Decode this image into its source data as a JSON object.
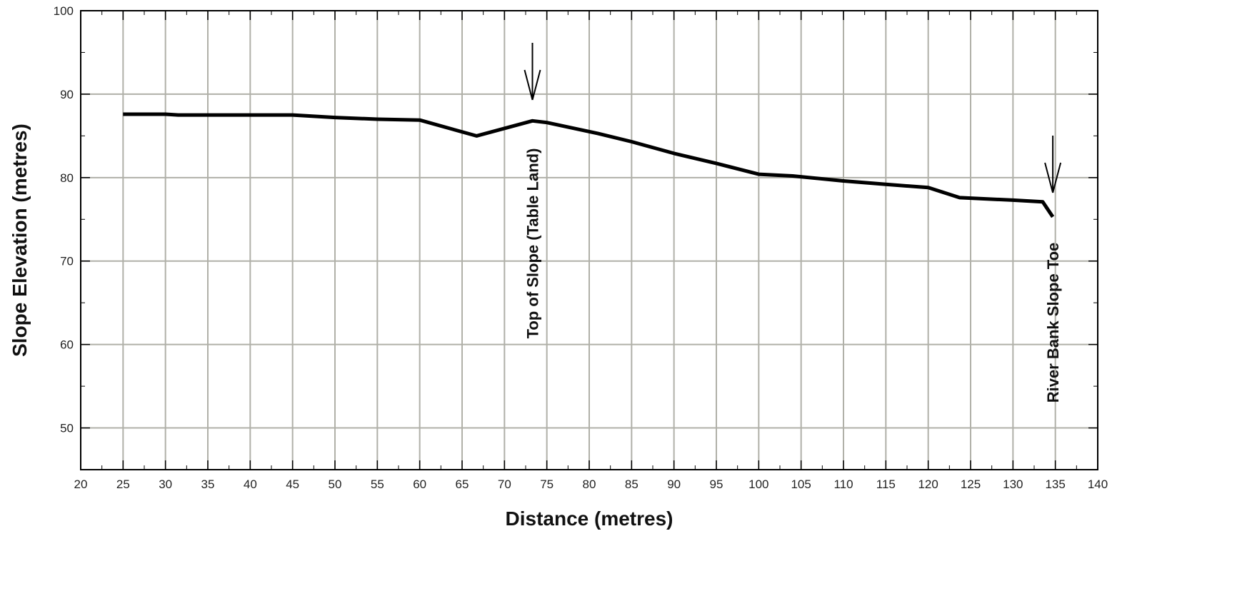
{
  "chart_data": {
    "type": "line",
    "title": "",
    "xlabel": "Distance (metres)",
    "ylabel": "Slope Elevation (metres)",
    "xlim": [
      20,
      140
    ],
    "ylim": [
      45,
      100
    ],
    "x_ticks": [
      20,
      25,
      30,
      35,
      40,
      45,
      50,
      55,
      60,
      65,
      70,
      75,
      80,
      85,
      90,
      95,
      100,
      105,
      110,
      115,
      120,
      125,
      130,
      135,
      140
    ],
    "y_ticks": [
      50,
      60,
      70,
      80,
      90,
      100
    ],
    "grid": true,
    "series": [
      {
        "x": [
          25,
          30,
          31.5,
          45,
          50,
          55,
          60,
          66.7,
          73.3,
          75,
          81,
          85,
          90,
          95,
          100,
          104,
          110,
          115,
          120,
          123.7,
          130,
          133.5,
          134.7
        ],
        "y": [
          87.6,
          87.6,
          87.5,
          87.5,
          87.2,
          87.0,
          86.9,
          85.0,
          86.8,
          86.6,
          85.3,
          84.3,
          82.9,
          81.7,
          80.4,
          80.2,
          79.6,
          79.2,
          78.8,
          77.6,
          77.3,
          77.1,
          75.3
        ]
      }
    ],
    "annotations": [
      {
        "text": "Top of Slope (Table Land)",
        "x": 73.3,
        "y": 86.8
      },
      {
        "text": "River Bank Slope Toe",
        "x": 134.7,
        "y": 75.3
      }
    ],
    "colors": {
      "line": "#000000",
      "grid": "#b0b0a8",
      "frame": "#000000"
    }
  }
}
